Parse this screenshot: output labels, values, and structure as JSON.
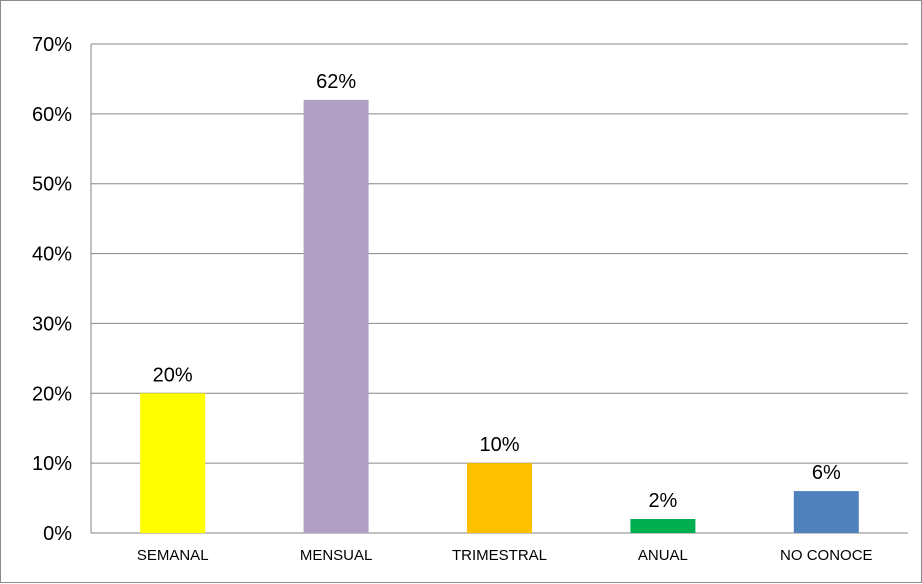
{
  "chart_data": {
    "type": "bar",
    "categories": [
      "SEMANAL",
      "MENSUAL",
      "TRIMESTRAL",
      "ANUAL",
      "NO CONOCE"
    ],
    "values": [
      20,
      62,
      10,
      2,
      6
    ],
    "data_labels": [
      "20%",
      "62%",
      "10%",
      "2%",
      "6%"
    ],
    "colors": [
      "#ffff00",
      "#b2a1c7",
      "#ffc000",
      "#00b050",
      "#4f81bd"
    ],
    "ylim": [
      0,
      70
    ],
    "y_ticks": [
      0,
      10,
      20,
      30,
      40,
      50,
      60,
      70
    ],
    "y_tick_labels": [
      "0%",
      "10%",
      "20%",
      "30%",
      "40%",
      "50%",
      "60%",
      "70%"
    ],
    "title": "",
    "xlabel": "",
    "ylabel": "",
    "grid": true,
    "legend": "none"
  }
}
